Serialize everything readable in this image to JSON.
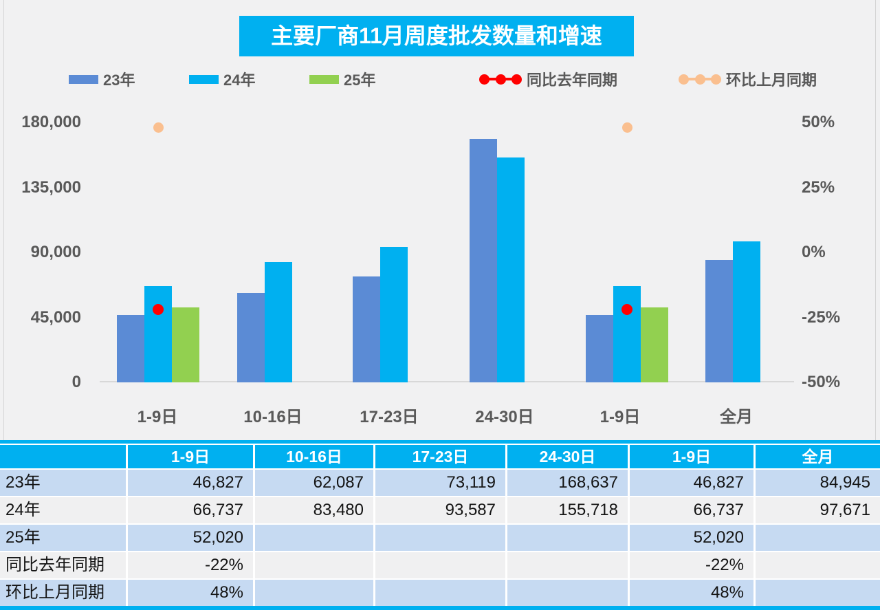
{
  "chart": {
    "title": "主要厂商11月周度批发数量和增速",
    "legend": [
      {
        "label": "23年",
        "type": "bar",
        "color": "#5B8BD5"
      },
      {
        "label": "24年",
        "type": "bar",
        "color": "#00B0F0"
      },
      {
        "label": "25年",
        "type": "bar",
        "color": "#92D050"
      },
      {
        "label": "同比去年同期",
        "type": "dotline",
        "color": "#FF0000"
      },
      {
        "label": "环比上月同期",
        "type": "dotline",
        "color": "#FABF8F"
      }
    ]
  },
  "chart_data": {
    "type": "bar",
    "title": "主要厂商11月周度批发数量和增速",
    "categories": [
      "1-9日",
      "10-16日",
      "17-23日",
      "24-30日",
      "1-9日",
      "全月"
    ],
    "series": [
      {
        "name": "23年",
        "type": "bar",
        "axis": "left",
        "color": "#5B8BD5",
        "values": [
          46827,
          62087,
          73119,
          168637,
          46827,
          84945
        ]
      },
      {
        "name": "24年",
        "type": "bar",
        "axis": "left",
        "color": "#00B0F0",
        "values": [
          66737,
          83480,
          93587,
          155718,
          66737,
          97671
        ]
      },
      {
        "name": "25年",
        "type": "bar",
        "axis": "left",
        "color": "#92D050",
        "values": [
          52020,
          null,
          null,
          null,
          52020,
          null
        ]
      },
      {
        "name": "同比去年同期",
        "type": "point",
        "axis": "right",
        "color": "#FF0000",
        "values": [
          -22,
          null,
          null,
          null,
          -22,
          null
        ]
      },
      {
        "name": "环比上月同期",
        "type": "point",
        "axis": "right",
        "color": "#FABF8F",
        "values": [
          48,
          null,
          null,
          null,
          48,
          null
        ]
      }
    ],
    "left_axis": {
      "min": 0,
      "max": 180000,
      "tick_labels": [
        "180,000",
        "135,000",
        "90,000",
        "45,000",
        "0"
      ],
      "tick_values": [
        180000,
        135000,
        90000,
        45000,
        0
      ]
    },
    "right_axis": {
      "min": -50,
      "max": 50,
      "tick_labels": [
        "50%",
        "25%",
        "0%",
        "-25%",
        "-50%"
      ],
      "tick_values": [
        50,
        25,
        0,
        -25,
        -50
      ]
    },
    "grid": false,
    "legend_position": "top"
  },
  "table": {
    "columns": [
      "",
      "1-9日",
      "10-16日",
      "17-23日",
      "24-30日",
      "1-9日",
      "全月"
    ],
    "rows": [
      {
        "label": "23年",
        "values": [
          "46,827",
          "62,087",
          "73,119",
          "168,637",
          "46,827",
          "84,945"
        ]
      },
      {
        "label": "24年",
        "values": [
          "66,737",
          "83,480",
          "93,587",
          "155,718",
          "66,737",
          "97,671"
        ]
      },
      {
        "label": "25年",
        "values": [
          "52,020",
          "",
          "",
          "",
          "52,020",
          ""
        ]
      },
      {
        "label": "同比去年同期",
        "values": [
          "-22%",
          "",
          "",
          "",
          "-22%",
          ""
        ]
      },
      {
        "label": "环比上月同期",
        "values": [
          "48%",
          "",
          "",
          "",
          "48%",
          ""
        ]
      }
    ]
  },
  "colors": {
    "accent_cyan": "#00B0F0",
    "accent_blue": "#5B8BD5",
    "accent_green": "#92D050",
    "accent_red": "#FF0000",
    "accent_peach": "#FABF8F",
    "page_background": "#F1F1F2",
    "table_row_blue": "#C6DAF2",
    "table_row_white": "#F0F0F1",
    "axis_text": "#595959"
  }
}
